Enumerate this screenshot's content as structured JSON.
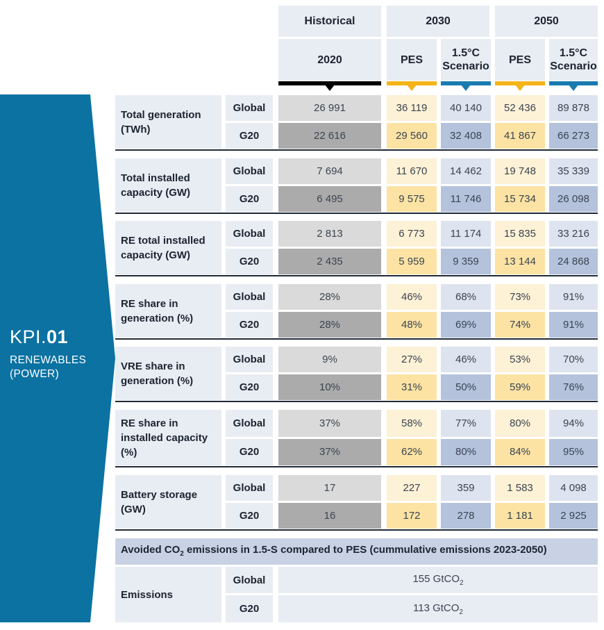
{
  "banner": {
    "code_prefix": "KPI.",
    "code_num": "01",
    "subtitle_line1": "RENEWABLES",
    "subtitle_line2": "(POWER)",
    "color": "#0b72a2"
  },
  "headers": {
    "historical": "Historical",
    "y2030": "2030",
    "y2050": "2050",
    "y2020": "2020",
    "pes": "PES",
    "scenario_line1": "1.5°C",
    "scenario_line2": "Scenario"
  },
  "colors": {
    "historical": "#000000",
    "pes": "#f4b41a",
    "scenario": "#1a7bb0"
  },
  "regions": [
    "Global",
    "G20"
  ],
  "kpis": [
    {
      "label": "Total generation (TWh)",
      "global": [
        "26 991",
        "36 119",
        "40 140",
        "52 436",
        "89 878"
      ],
      "g20": [
        "22 616",
        "29 560",
        "32 408",
        "41 867",
        "66 273"
      ]
    },
    {
      "label": "Total installed capacity (GW)",
      "global": [
        "7 694",
        "11 670",
        "14 462",
        "19 748",
        "35 339"
      ],
      "g20": [
        "6 495",
        "9 575",
        "11 746",
        "15 734",
        "26 098"
      ]
    },
    {
      "label": "RE total installed capacity (GW)",
      "global": [
        "2 813",
        "6 773",
        "11 174",
        "15 835",
        "33 216"
      ],
      "g20": [
        "2 435",
        "5 959",
        "9 359",
        "13 144",
        "24 868"
      ]
    },
    {
      "label": "RE share in generation (%)",
      "global": [
        "28%",
        "46%",
        "68%",
        "73%",
        "91%"
      ],
      "g20": [
        "28%",
        "48%",
        "69%",
        "74%",
        "91%"
      ]
    },
    {
      "label": "VRE share in generation (%)",
      "global": [
        "9%",
        "27%",
        "46%",
        "53%",
        "70%"
      ],
      "g20": [
        "10%",
        "31%",
        "50%",
        "59%",
        "76%"
      ]
    },
    {
      "label": "RE share in installed capacity (%)",
      "global": [
        "37%",
        "58%",
        "77%",
        "80%",
        "94%"
      ],
      "g20": [
        "37%",
        "62%",
        "80%",
        "84%",
        "95%"
      ]
    },
    {
      "label": "Battery storage (GW)",
      "global": [
        "17",
        "227",
        "359",
        "1 583",
        "4 098"
      ],
      "g20": [
        "16",
        "172",
        "278",
        "1 181",
        "2 925"
      ]
    }
  ],
  "avoided": {
    "title_pre": "Avoided CO",
    "title_sub": "2",
    "title_post": " emissions in 1.5-S compared to PES (cummulative emissions 2023-2050)",
    "label": "Emissions",
    "global_value": "155 GtCO",
    "g20_value": "113 GtCO",
    "unit_sub": "2"
  }
}
